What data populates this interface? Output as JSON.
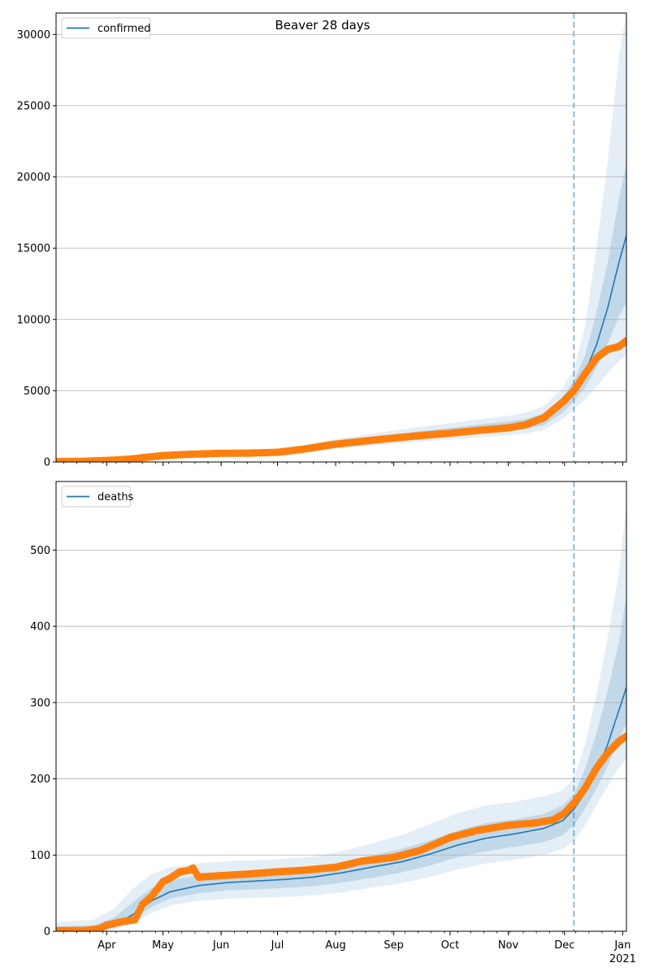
{
  "figure": {
    "title": "Beaver 28 days",
    "colors": {
      "model": "#1f77b4",
      "observed": "#ff7f0e",
      "grid": "#b0b0b0",
      "band": "#1f77b4",
      "vline": "#1f77b4"
    }
  },
  "chart_data": [
    {
      "type": "line",
      "title": "Beaver 28 days",
      "legend": {
        "entries": [
          "confirmed"
        ],
        "placement": "upper-left"
      },
      "xlabel": "",
      "ylabel": "",
      "x_tick_labels": [
        "Apr",
        "May",
        "Jun",
        "Jul",
        "Aug",
        "Sep",
        "Oct",
        "Nov",
        "Dec",
        "Jan\n2021"
      ],
      "x_range": [
        "2020-03-05",
        "2021-01-03"
      ],
      "ylim": [
        0,
        31500
      ],
      "y_ticks": [
        0,
        5000,
        10000,
        15000,
        20000,
        25000,
        30000
      ],
      "grid": "horizontal",
      "forecast_start": "2020-12-06",
      "series": [
        {
          "name": "confirmed",
          "kind": "model",
          "x": [
            "2020-03-05",
            "2020-03-20",
            "2020-04-05",
            "2020-04-20",
            "2020-05-01",
            "2020-05-15",
            "2020-06-01",
            "2020-06-15",
            "2020-07-01",
            "2020-07-15",
            "2020-08-01",
            "2020-08-15",
            "2020-09-01",
            "2020-09-15",
            "2020-10-01",
            "2020-10-15",
            "2020-11-01",
            "2020-11-10",
            "2020-11-20",
            "2020-11-30",
            "2020-12-06",
            "2020-12-12",
            "2020-12-18",
            "2020-12-24",
            "2020-12-30",
            "2021-01-03"
          ],
          "values": [
            40,
            60,
            150,
            300,
            450,
            550,
            620,
            640,
            700,
            900,
            1250,
            1450,
            1700,
            1900,
            2100,
            2300,
            2500,
            2650,
            3000,
            4000,
            5000,
            6300,
            8200,
            10800,
            14000,
            15900
          ],
          "bands": [
            {
              "level": "outer",
              "lo": [
                20,
                30,
                100,
                210,
                320,
                390,
                450,
                470,
                510,
                660,
                930,
                1080,
                1270,
                1420,
                1570,
                1720,
                1880,
                1990,
                2250,
                3000,
                3700,
                4400,
                5300,
                6200,
                7100,
                7400
              ],
              "hi": [
                60,
                90,
                210,
                410,
                600,
                720,
                810,
                840,
                910,
                1170,
                1620,
                1880,
                2200,
                2460,
                2720,
                2980,
                3240,
                3430,
                3900,
                5200,
                6500,
                9500,
                15000,
                21000,
                28500,
                31500
              ]
            },
            {
              "level": "inner",
              "lo": [
                30,
                45,
                125,
                255,
                385,
                470,
                530,
                550,
                600,
                770,
                1080,
                1250,
                1470,
                1640,
                1810,
                1990,
                2160,
                2290,
                2590,
                3450,
                4300,
                5200,
                6600,
                8300,
                10200,
                11200
              ],
              "hi": [
                50,
                75,
                180,
                350,
                520,
                630,
                710,
                730,
                800,
                1030,
                1420,
                1650,
                1930,
                2160,
                2390,
                2610,
                2840,
                3010,
                3420,
                4560,
                5700,
                7500,
                10500,
                14000,
                18500,
                21000
              ]
            }
          ]
        },
        {
          "name": "",
          "kind": "observed",
          "x": [
            "2020-03-05",
            "2020-03-20",
            "2020-04-05",
            "2020-04-15",
            "2020-04-20",
            "2020-05-01",
            "2020-05-15",
            "2020-06-01",
            "2020-06-15",
            "2020-07-01",
            "2020-07-15",
            "2020-08-01",
            "2020-08-15",
            "2020-09-01",
            "2020-09-15",
            "2020-10-01",
            "2020-10-15",
            "2020-11-01",
            "2020-11-10",
            "2020-11-20",
            "2020-11-30",
            "2020-12-06",
            "2020-12-12",
            "2020-12-18",
            "2020-12-24",
            "2020-12-30",
            "2021-01-03"
          ],
          "values": [
            20,
            50,
            130,
            220,
            300,
            450,
            540,
            610,
            620,
            680,
            900,
            1250,
            1450,
            1680,
            1850,
            2020,
            2200,
            2400,
            2600,
            3100,
            4200,
            5000,
            6200,
            7300,
            7900,
            8100,
            8500
          ]
        }
      ]
    },
    {
      "type": "line",
      "legend": {
        "entries": [
          "deaths"
        ],
        "placement": "upper-left"
      },
      "xlabel": "",
      "ylabel": "",
      "x_tick_labels": [
        "Apr",
        "May",
        "Jun",
        "Jul",
        "Aug",
        "Sep",
        "Oct",
        "Nov",
        "Dec",
        "Jan\n2021"
      ],
      "x_range": [
        "2020-03-05",
        "2021-01-03"
      ],
      "ylim": [
        0,
        590
      ],
      "y_ticks": [
        0,
        100,
        200,
        300,
        400,
        500
      ],
      "grid": "horizontal",
      "forecast_start": "2020-12-06",
      "series": [
        {
          "name": "deaths",
          "kind": "model",
          "x": [
            "2020-03-05",
            "2020-03-25",
            "2020-04-05",
            "2020-04-15",
            "2020-04-25",
            "2020-05-05",
            "2020-05-20",
            "2020-06-05",
            "2020-06-20",
            "2020-07-05",
            "2020-07-20",
            "2020-08-05",
            "2020-08-20",
            "2020-09-05",
            "2020-09-20",
            "2020-10-05",
            "2020-10-20",
            "2020-11-05",
            "2020-11-20",
            "2020-11-30",
            "2020-12-06",
            "2020-12-12",
            "2020-12-18",
            "2020-12-24",
            "2020-12-30",
            "2021-01-03"
          ],
          "values": [
            1,
            2,
            8,
            22,
            40,
            52,
            60,
            64,
            66,
            68,
            71,
            77,
            84,
            91,
            101,
            113,
            122,
            128,
            135,
            145,
            160,
            182,
            210,
            245,
            290,
            320
          ],
          "bands": [
            {
              "level": "outer",
              "lo": [
                0,
                0,
                2,
                10,
                24,
                34,
                40,
                43,
                44,
                45,
                47,
                51,
                57,
                63,
                71,
                81,
                89,
                94,
                100,
                108,
                118,
                140,
                165,
                190,
                215,
                225
              ],
              "hi": [
                12,
                15,
                30,
                56,
                75,
                84,
                89,
                92,
                93,
                95,
                98,
                105,
                115,
                126,
                140,
                155,
                165,
                170,
                177,
                185,
                200,
                245,
                310,
                385,
                470,
                560
              ]
            },
            {
              "level": "inner",
              "lo": [
                0,
                1,
                5,
                16,
                32,
                43,
                50,
                54,
                55,
                57,
                59,
                64,
                70,
                77,
                86,
                97,
                105,
                111,
                117,
                126,
                139,
                161,
                187,
                217,
                252,
                272
              ],
              "hi": [
                6,
                8,
                18,
                38,
                57,
                67,
                73,
                77,
                78,
                80,
                83,
                90,
                99,
                108,
                119,
                132,
                142,
                147,
                154,
                165,
                180,
                213,
                260,
                315,
                380,
                440
              ]
            }
          ]
        },
        {
          "name": "",
          "kind": "observed",
          "x": [
            "2020-03-05",
            "2020-03-20",
            "2020-03-28",
            "2020-04-01",
            "2020-04-10",
            "2020-04-16",
            "2020-04-20",
            "2020-04-25",
            "2020-05-01",
            "2020-05-05",
            "2020-05-10",
            "2020-05-15",
            "2020-05-17",
            "2020-05-20",
            "2020-06-01",
            "2020-06-15",
            "2020-07-01",
            "2020-07-15",
            "2020-08-01",
            "2020-08-15",
            "2020-09-01",
            "2020-09-15",
            "2020-10-01",
            "2020-10-15",
            "2020-11-01",
            "2020-11-15",
            "2020-11-25",
            "2020-12-01",
            "2020-12-06",
            "2020-12-12",
            "2020-12-18",
            "2020-12-24",
            "2020-12-30",
            "2021-01-03"
          ],
          "values": [
            1,
            1,
            3,
            8,
            13,
            15,
            35,
            46,
            65,
            70,
            78,
            80,
            83,
            71,
            73,
            75,
            78,
            80,
            84,
            92,
            97,
            106,
            123,
            132,
            139,
            142,
            146,
            155,
            168,
            188,
            214,
            234,
            249,
            256
          ]
        }
      ]
    }
  ]
}
